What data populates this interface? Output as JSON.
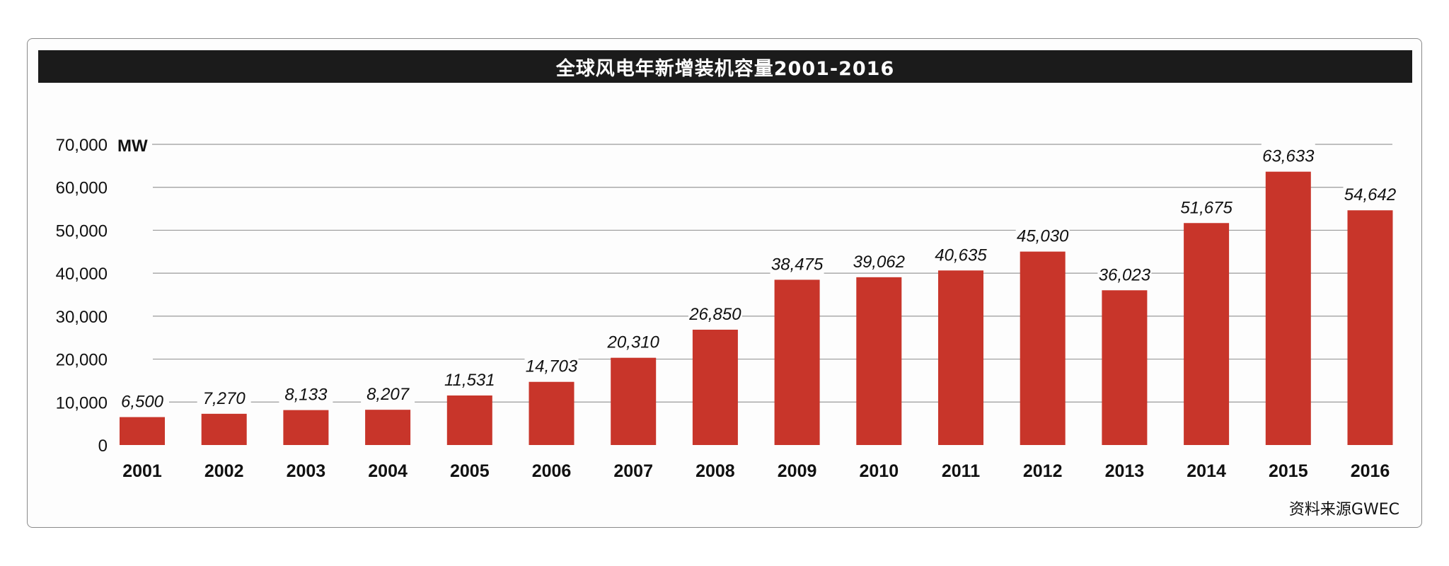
{
  "chart_data": {
    "type": "bar",
    "title": "全球风电年新增装机容量2001-2016",
    "unit_label": "MW",
    "source": "资料来源GWEC",
    "categories": [
      "2001",
      "2002",
      "2003",
      "2004",
      "2005",
      "2006",
      "2007",
      "2008",
      "2009",
      "2010",
      "2011",
      "2012",
      "2013",
      "2014",
      "2015",
      "2016"
    ],
    "values": [
      6500,
      7270,
      8133,
      8207,
      11531,
      14703,
      20310,
      26850,
      38475,
      39062,
      40635,
      45030,
      36023,
      51675,
      63633,
      54642
    ],
    "value_labels": [
      "6,500",
      "7,270",
      "8,133",
      "8,207",
      "11,531",
      "14,703",
      "20,310",
      "26,850",
      "38,475",
      "39,062",
      "40,635",
      "45,030",
      "36,023",
      "51,675",
      "63,633",
      "54,642"
    ],
    "y_ticks": [
      0,
      10000,
      20000,
      30000,
      40000,
      50000,
      60000,
      70000
    ],
    "y_tick_labels": [
      "0",
      "10,000",
      "20,000",
      "30,000",
      "40,000",
      "50,000",
      "60,000",
      "70,000"
    ],
    "ylim": [
      0,
      70000
    ],
    "grid": true,
    "colors": {
      "bar": "#c8352a",
      "grid": "#9a9a9a",
      "title_bg": "#1b1b1b",
      "title_text": "#ffffff"
    }
  }
}
